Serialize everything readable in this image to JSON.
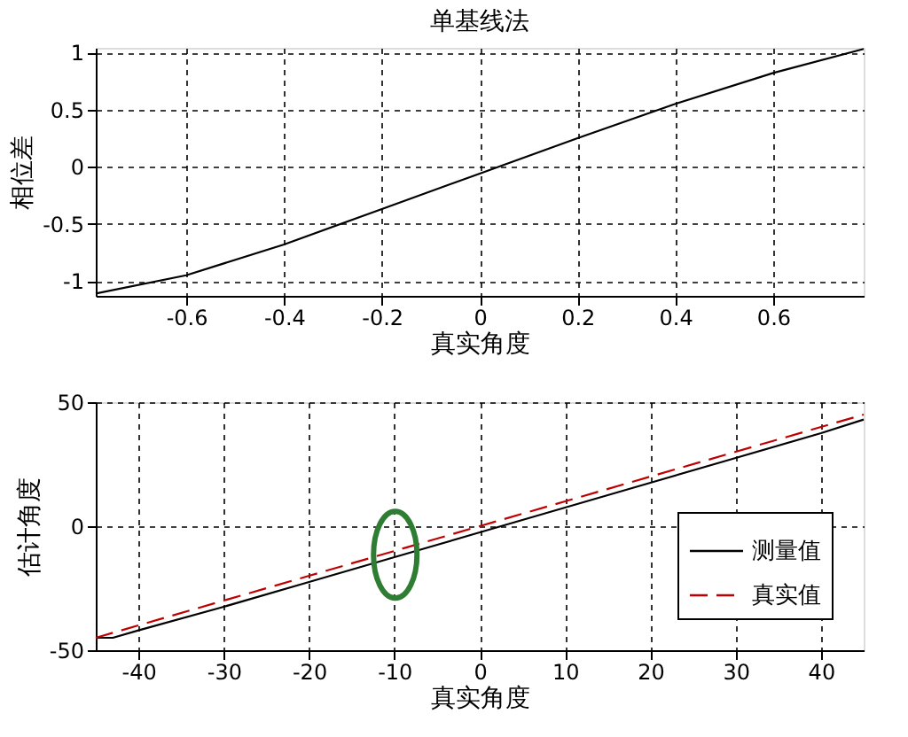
{
  "chart_data": [
    {
      "type": "line",
      "title": "单基线法",
      "xlabel": "真实角度",
      "ylabel": "相位差",
      "x": [
        -0.785,
        -0.6,
        -0.4,
        -0.2,
        0,
        0.2,
        0.4,
        0.6,
        0.785
      ],
      "series": [
        {
          "color": "#000000",
          "values": [
            -1.11,
            -0.95,
            -0.68,
            -0.37,
            -0.06,
            0.25,
            0.55,
            0.82,
            1.03
          ]
        }
      ],
      "xlim": [
        -0.785,
        0.785
      ],
      "xticks": [
        -0.6,
        -0.4,
        -0.2,
        0,
        0.2,
        0.4,
        0.6
      ],
      "ylim": [
        -1.13,
        1.04
      ],
      "yticks": [
        -1,
        -0.5,
        0,
        0.5,
        1
      ],
      "grid": true,
      "legend": false,
      "line_style": "solid"
    },
    {
      "type": "line",
      "xlabel": "真实角度",
      "ylabel": "估计角度",
      "x": [
        -45,
        -43,
        -40,
        -30,
        -20,
        -10,
        0,
        10,
        20,
        30,
        40,
        45
      ],
      "series": [
        {
          "name": "测量值",
          "color": "#000000",
          "line_style": "solid",
          "values": [
            -45,
            -45,
            -42,
            -32.5,
            -22.5,
            -12.5,
            -2.5,
            7.5,
            17.5,
            27.5,
            37.5,
            43
          ]
        },
        {
          "name": "真实值",
          "color": "#c00000",
          "line_style": "dashed",
          "values": [
            -45,
            -43,
            -40,
            -30,
            -20,
            -10,
            0,
            10,
            20,
            30,
            40,
            45
          ]
        }
      ],
      "xlim": [
        -45,
        45
      ],
      "xticks": [
        -40,
        -30,
        -20,
        -10,
        0,
        10,
        20,
        30,
        40
      ],
      "ylim": [
        -50,
        50
      ],
      "yticks": [
        -50,
        0,
        50
      ],
      "grid": true,
      "legend": "bottom right"
    }
  ]
}
